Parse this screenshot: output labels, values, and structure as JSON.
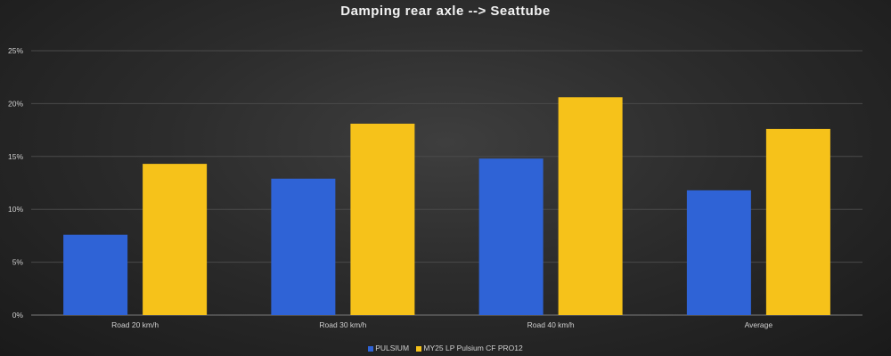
{
  "chart_data": {
    "type": "bar",
    "title": "Damping rear axle --> Seattube",
    "categories": [
      "Road 20 km/h",
      "Road 30 km/h",
      "Road 40 km/h",
      "Average"
    ],
    "series": [
      {
        "name": "PULSIUM",
        "values": [
          7.6,
          12.9,
          14.8,
          11.8
        ],
        "color": "#2f63d6"
      },
      {
        "name": "MY25 LP Pulsium CF PRO12",
        "values": [
          14.3,
          18.1,
          20.6,
          17.6
        ],
        "color": "#f6c21a"
      }
    ],
    "ylim": [
      0,
      25
    ],
    "yticks": [
      "0%",
      "5%",
      "10%",
      "15%",
      "20%",
      "25%"
    ],
    "grid": true,
    "legend_position": "bottom"
  }
}
